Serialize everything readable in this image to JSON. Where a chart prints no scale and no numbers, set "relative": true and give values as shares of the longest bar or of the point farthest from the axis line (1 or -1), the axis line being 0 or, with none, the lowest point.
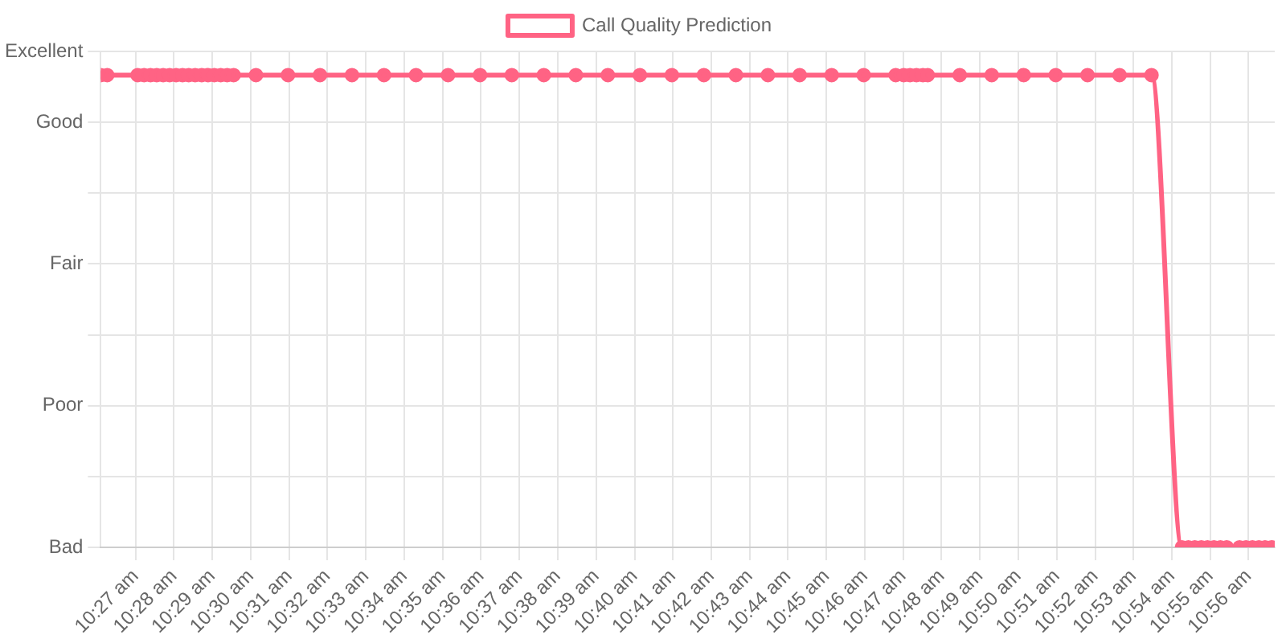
{
  "chart_data": {
    "type": "line",
    "legend": "top",
    "grid": true,
    "marker": "circle",
    "line_style": "solid",
    "x": [
      10.4349,
      10.4377,
      10.4509,
      10.4537,
      10.4565,
      10.4592,
      10.462,
      10.4648,
      10.4676,
      10.4704,
      10.4731,
      10.4759,
      10.4787,
      10.4815,
      10.4842,
      10.487,
      10.4898,
      10.4926,
      10.5023,
      10.5162,
      10.5301,
      10.544,
      10.5579,
      10.5718,
      10.5857,
      10.5996,
      10.6134,
      10.6273,
      10.6412,
      10.6551,
      10.669,
      10.6829,
      10.6968,
      10.7107,
      10.7246,
      10.7384,
      10.7523,
      10.7662,
      10.7801,
      10.7836,
      10.7863,
      10.7891,
      10.7919,
      10.794,
      10.8079,
      10.8218,
      10.8357,
      10.8496,
      10.8634,
      10.8773,
      10.8912,
      10.9044,
      10.9072,
      10.91,
      10.9128,
      10.9155,
      10.9183,
      10.9211,
      10.9239,
      10.9294,
      10.9322,
      10.935,
      10.9378,
      10.9405,
      10.9433
    ],
    "series": [
      {
        "name": "Call Quality Prediction",
        "color": "#ff6384",
        "values": [
          1,
          1,
          1,
          1,
          1,
          1,
          1,
          1,
          1,
          1,
          1,
          1,
          1,
          1,
          1,
          1,
          1,
          1,
          1,
          1,
          1,
          1,
          1,
          1,
          1,
          1,
          1,
          1,
          1,
          1,
          1,
          1,
          1,
          1,
          1,
          1,
          1,
          1,
          1,
          1,
          1,
          1,
          1,
          1,
          1,
          1,
          1,
          1,
          1,
          1,
          1,
          0,
          0,
          0,
          0,
          0,
          0,
          0,
          0,
          0,
          0,
          0,
          0,
          0,
          0
        ]
      }
    ],
    "xlim": [
      10.4349,
      10.9447
    ],
    "xticks": [
      {
        "value": 10.45,
        "label": "10:27 am"
      },
      {
        "value": 10.4667,
        "label": "10:28 am"
      },
      {
        "value": 10.4833,
        "label": "10:29 am"
      },
      {
        "value": 10.5,
        "label": "10:30 am"
      },
      {
        "value": 10.5167,
        "label": "10:31 am"
      },
      {
        "value": 10.5333,
        "label": "10:32 am"
      },
      {
        "value": 10.55,
        "label": "10:33 am"
      },
      {
        "value": 10.5667,
        "label": "10:34 am"
      },
      {
        "value": 10.5833,
        "label": "10:35 am"
      },
      {
        "value": 10.6,
        "label": "10:36 am"
      },
      {
        "value": 10.6167,
        "label": "10:37 am"
      },
      {
        "value": 10.6333,
        "label": "10:38 am"
      },
      {
        "value": 10.65,
        "label": "10:39 am"
      },
      {
        "value": 10.6667,
        "label": "10:40 am"
      },
      {
        "value": 10.6833,
        "label": "10:41 am"
      },
      {
        "value": 10.7,
        "label": "10:42 am"
      },
      {
        "value": 10.7167,
        "label": "10:43 am"
      },
      {
        "value": 10.7333,
        "label": "10:44 am"
      },
      {
        "value": 10.75,
        "label": "10:45 am"
      },
      {
        "value": 10.7667,
        "label": "10:46 am"
      },
      {
        "value": 10.7833,
        "label": "10:47 am"
      },
      {
        "value": 10.8,
        "label": "10:48 am"
      },
      {
        "value": 10.8167,
        "label": "10:49 am"
      },
      {
        "value": 10.8333,
        "label": "10:50 am"
      },
      {
        "value": 10.85,
        "label": "10:51 am"
      },
      {
        "value": 10.8667,
        "label": "10:52 am"
      },
      {
        "value": 10.8833,
        "label": "10:53 am"
      },
      {
        "value": 10.9,
        "label": "10:54 am"
      },
      {
        "value": 10.9167,
        "label": "10:55 am"
      },
      {
        "value": 10.9333,
        "label": "10:56 am"
      }
    ],
    "relative": true,
    "y_categories": [
      "Excellent",
      "Good",
      null,
      "Fair",
      null,
      "Poor",
      null,
      "Bad"
    ]
  }
}
